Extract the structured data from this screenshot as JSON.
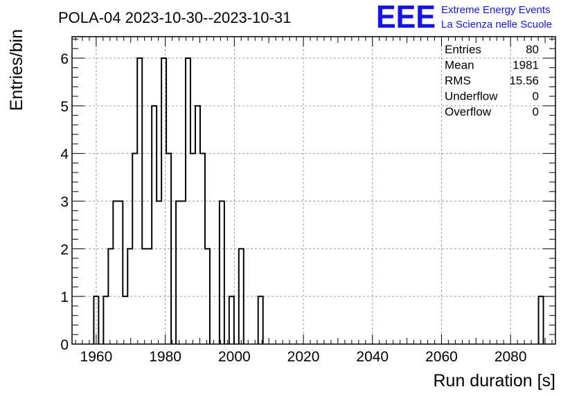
{
  "logo": {
    "mark": "EEE",
    "line1": "Extreme Energy Events",
    "line2": "La Scienza nelle Scuole",
    "color": "#1414e6"
  },
  "stats": [
    {
      "label": "Entries",
      "value": "80"
    },
    {
      "label": "Mean",
      "value": "1981"
    },
    {
      "label": "RMS",
      "value": "15.56"
    },
    {
      "label": "Underflow",
      "value": "0"
    },
    {
      "label": "Overflow",
      "value": "0"
    }
  ],
  "chart_data": {
    "type": "bar",
    "style": "step-histogram",
    "title": "POLA-04 2023-10-30--2023-10-31",
    "xlabel": "Run duration [s]",
    "ylabel": "Entries/bin",
    "xlim": [
      1953,
      2093
    ],
    "ylim": [
      0,
      6.45
    ],
    "bin_width": 1.4,
    "grid": true,
    "x_ticks": [
      1960,
      1980,
      2000,
      2020,
      2040,
      2060,
      2080
    ],
    "y_ticks": [
      0,
      1,
      2,
      3,
      4,
      5,
      6
    ],
    "bins": [
      {
        "x": 1960.0,
        "count": 1
      },
      {
        "x": 1962.8,
        "count": 1
      },
      {
        "x": 1964.2,
        "count": 2
      },
      {
        "x": 1965.6,
        "count": 3
      },
      {
        "x": 1967.0,
        "count": 3
      },
      {
        "x": 1968.4,
        "count": 1
      },
      {
        "x": 1969.8,
        "count": 2
      },
      {
        "x": 1971.2,
        "count": 4
      },
      {
        "x": 1972.6,
        "count": 6
      },
      {
        "x": 1974.0,
        "count": 2
      },
      {
        "x": 1975.4,
        "count": 2
      },
      {
        "x": 1976.8,
        "count": 5
      },
      {
        "x": 1978.2,
        "count": 3
      },
      {
        "x": 1979.6,
        "count": 6
      },
      {
        "x": 1981.0,
        "count": 4
      },
      {
        "x": 1983.8,
        "count": 3
      },
      {
        "x": 1985.2,
        "count": 3
      },
      {
        "x": 1986.6,
        "count": 6
      },
      {
        "x": 1988.0,
        "count": 4
      },
      {
        "x": 1989.4,
        "count": 5
      },
      {
        "x": 1990.8,
        "count": 4
      },
      {
        "x": 1992.2,
        "count": 2
      },
      {
        "x": 1996.4,
        "count": 3
      },
      {
        "x": 1999.2,
        "count": 1
      },
      {
        "x": 2002.0,
        "count": 2
      },
      {
        "x": 2007.6,
        "count": 1
      },
      {
        "x": 2088.8,
        "count": 1
      }
    ]
  }
}
